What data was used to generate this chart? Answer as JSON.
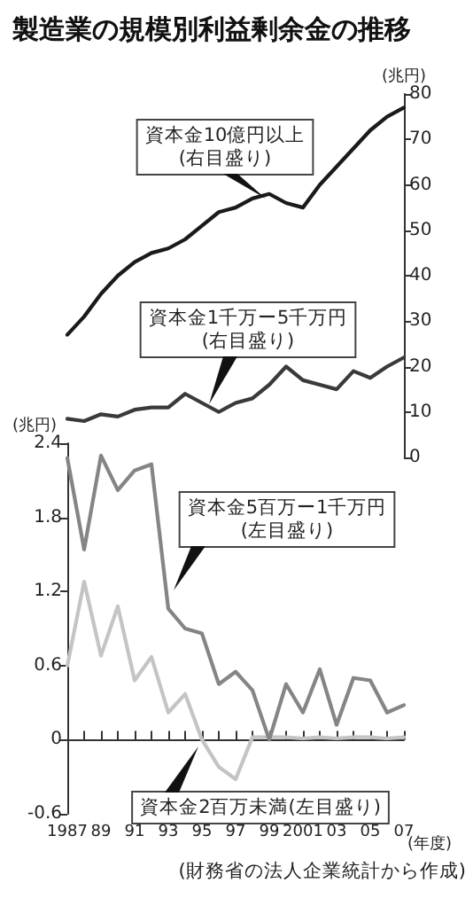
{
  "chart_data": [
    {
      "type": "line",
      "title": "製造業の規模別利益剰余金の推移",
      "ylabel": "(兆円)",
      "categories": [
        "1987",
        null,
        "89",
        null,
        "91",
        null,
        "93",
        null,
        "95",
        null,
        "97",
        null,
        "99",
        null,
        "2001",
        null,
        "03",
        null,
        "05",
        null,
        "07"
      ],
      "series": [
        {
          "name": "資本金10億円以上\n(右目盛り)",
          "color": "#1a1a1a",
          "values": [
            27,
            31,
            36,
            40,
            43,
            45,
            46,
            48,
            51,
            54,
            55,
            57,
            58,
            56,
            55,
            60,
            64,
            68,
            72,
            75,
            77
          ]
        },
        {
          "name": "資本金1千万ー5千万円\n(右目盛り)",
          "color": "#3a3a3a",
          "values": [
            8.5,
            8,
            9.5,
            9,
            10.5,
            11,
            11,
            14,
            12,
            10,
            12,
            13,
            16,
            20,
            17,
            16,
            15,
            19,
            17.5,
            20,
            22
          ]
        }
      ],
      "ylim": [
        0,
        80
      ],
      "yticks": [
        0,
        10,
        20,
        30,
        40,
        50,
        60,
        70,
        80
      ],
      "tick_labels": "y",
      "legend": false,
      "marker": "none",
      "line_style": "solid"
    },
    {
      "type": "line",
      "xlabel": "(年度)",
      "ylabel": "(兆円)",
      "categories": [
        "1987",
        null,
        "89",
        null,
        "91",
        null,
        "93",
        null,
        "95",
        null,
        "97",
        null,
        "99",
        null,
        "2001",
        null,
        "03",
        null,
        "05",
        null,
        "07"
      ],
      "series": [
        {
          "name": "資本金5百万ー1千万円\n(左目盛り)",
          "color": "#858585",
          "values": [
            2.28,
            1.54,
            2.3,
            2.02,
            2.18,
            2.23,
            1.06,
            0.9,
            0.86,
            0.45,
            0.55,
            0.4,
            0,
            0.45,
            0.22,
            0.57,
            0.12,
            0.5,
            0.48,
            0.22,
            0.28
          ]
        },
        {
          "name": "資本金2百万未満(左目盛り)",
          "color": "#c4c4c4",
          "values": [
            0.6,
            1.28,
            0.68,
            1.08,
            0.48,
            0.67,
            0.22,
            0.37,
            0,
            -0.22,
            -0.32,
            0.02,
            0.02,
            0.02,
            0.01,
            0.02,
            0.01,
            0.02,
            0.02,
            0.01,
            0.02
          ]
        }
      ],
      "ylim": [
        -0.6,
        2.4
      ],
      "yticks": [
        -0.6,
        0,
        0.6,
        1.2,
        1.8,
        2.4
      ],
      "legend": false,
      "marker": "none",
      "line_style": "solid",
      "annotations": [
        "(財務省の法人企業統計から作成)"
      ]
    }
  ]
}
